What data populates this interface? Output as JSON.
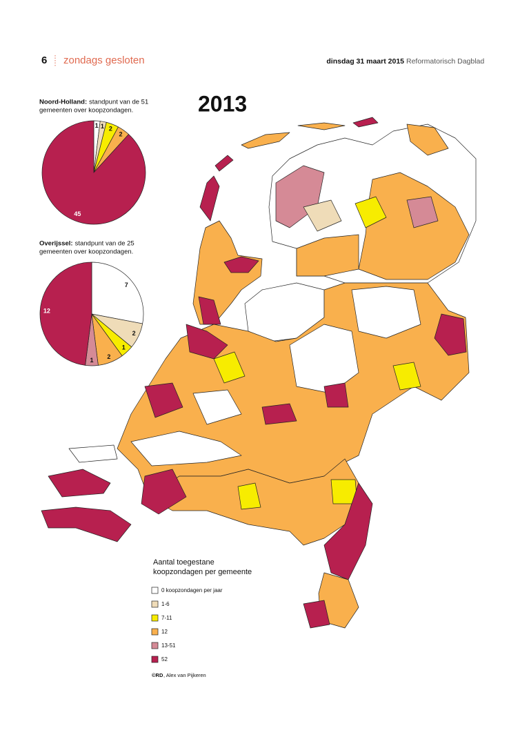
{
  "header": {
    "page_number": "6",
    "section": "zondags gesloten",
    "date": "dinsdag 31 maart 2015",
    "paper": "Reformatorisch Dagblad"
  },
  "map": {
    "title": "2013",
    "legend": {
      "title_line1": "Aantal toegestane",
      "title_line2": "koopzondagen per gemeente",
      "items": [
        {
          "label": "0 koopzondagen per jaar",
          "color": "#ffffff"
        },
        {
          "label": "1-6",
          "color": "#efdcb8"
        },
        {
          "label": "7-11",
          "color": "#f7ec00"
        },
        {
          "label": "12",
          "color": "#f9b04d"
        },
        {
          "label": "13-51",
          "color": "#d58a96"
        },
        {
          "label": "52",
          "color": "#b7204f"
        }
      ]
    },
    "credit_bold": "©RD",
    "credit": ", Alex van Pijkeren"
  },
  "chart_data": [
    {
      "type": "pie",
      "title": "Noord-Holland:",
      "subtitle": "standpunt van de 51 gemeenten over koopzondagen.",
      "values": [
        1,
        1,
        2,
        2,
        45
      ],
      "colors": [
        "#ffffff",
        "#efdcb8",
        "#f7ec00",
        "#f9b04d",
        "#b7204f"
      ]
    },
    {
      "type": "pie",
      "title": "Overijssel:",
      "subtitle": "standpunt van de 25 gemeenten over koopzondagen.",
      "values": [
        7,
        2,
        1,
        2,
        1,
        12
      ],
      "colors": [
        "#ffffff",
        "#efdcb8",
        "#f7ec00",
        "#f9b04d",
        "#d58a96",
        "#b7204f"
      ]
    }
  ]
}
